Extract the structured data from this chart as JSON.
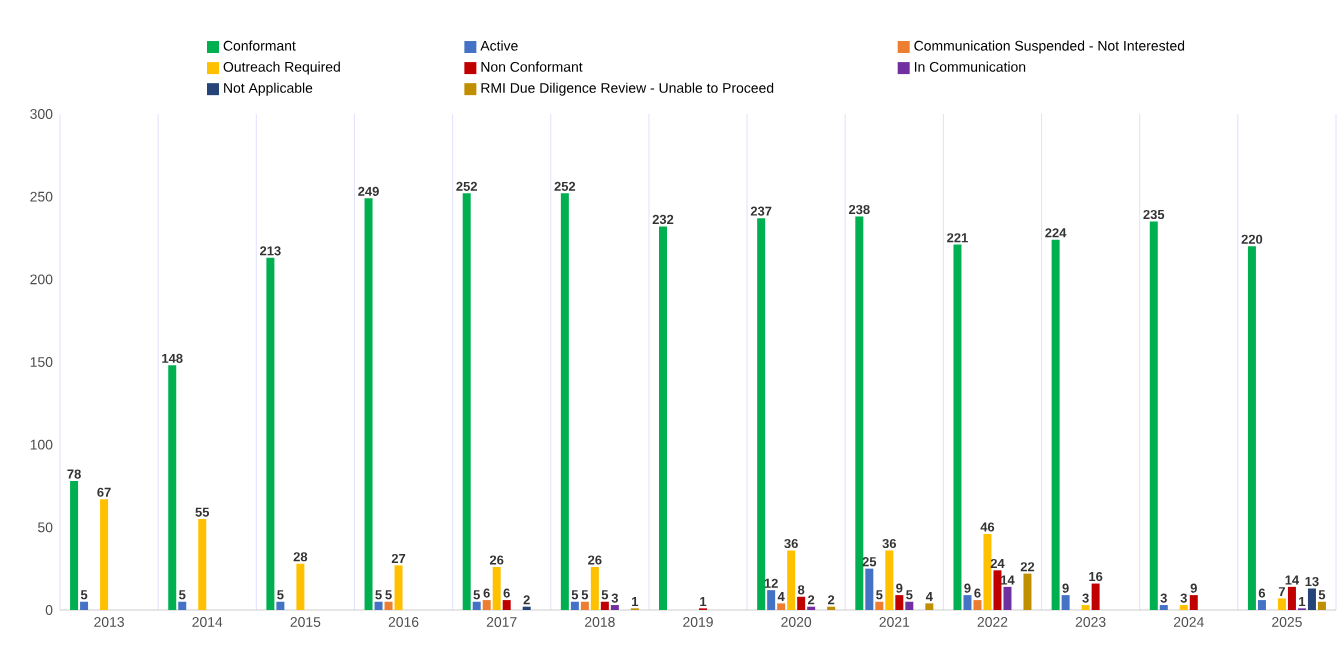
{
  "chart_data": {
    "type": "bar",
    "categories": [
      "2013",
      "2014",
      "2015",
      "2016",
      "2017",
      "2018",
      "2019",
      "2020",
      "2021",
      "2022",
      "2023",
      "2024",
      "2025"
    ],
    "series": [
      {
        "name": "Conformant",
        "color": "#00b050",
        "values": [
          78,
          148,
          213,
          249,
          252,
          252,
          232,
          237,
          238,
          221,
          224,
          235,
          220
        ]
      },
      {
        "name": "Active",
        "color": "#4472c4",
        "values": [
          5,
          5,
          5,
          5,
          5,
          5,
          null,
          12,
          25,
          9,
          9,
          3,
          6
        ]
      },
      {
        "name": "Communication Suspended - Not Interested",
        "color": "#ed7d31",
        "values": [
          null,
          null,
          null,
          5,
          6,
          5,
          null,
          4,
          5,
          6,
          null,
          null,
          null
        ]
      },
      {
        "name": "Outreach Required",
        "color": "#ffc000",
        "values": [
          67,
          55,
          28,
          27,
          26,
          26,
          null,
          36,
          36,
          46,
          3,
          3,
          7
        ]
      },
      {
        "name": "Non Conformant",
        "color": "#c00000",
        "values": [
          null,
          null,
          null,
          null,
          6,
          5,
          1,
          8,
          9,
          24,
          16,
          9,
          14
        ]
      },
      {
        "name": "In Communication",
        "color": "#7030a0",
        "values": [
          null,
          null,
          null,
          null,
          null,
          3,
          null,
          2,
          5,
          14,
          null,
          null,
          1
        ]
      },
      {
        "name": "Not Applicable",
        "color": "#264478",
        "values": [
          null,
          null,
          null,
          null,
          2,
          null,
          null,
          null,
          null,
          null,
          null,
          null,
          13
        ]
      },
      {
        "name": "RMI Due Diligence Review - Unable to Proceed",
        "color": "#bf8f00",
        "values": [
          null,
          null,
          null,
          null,
          null,
          1,
          null,
          2,
          4,
          22,
          null,
          null,
          5
        ]
      }
    ],
    "ylim": [
      0,
      300
    ],
    "yticks": [
      0,
      50,
      100,
      150,
      200,
      250,
      300
    ],
    "grid": "x",
    "legend": "top",
    "data_labels": true
  }
}
